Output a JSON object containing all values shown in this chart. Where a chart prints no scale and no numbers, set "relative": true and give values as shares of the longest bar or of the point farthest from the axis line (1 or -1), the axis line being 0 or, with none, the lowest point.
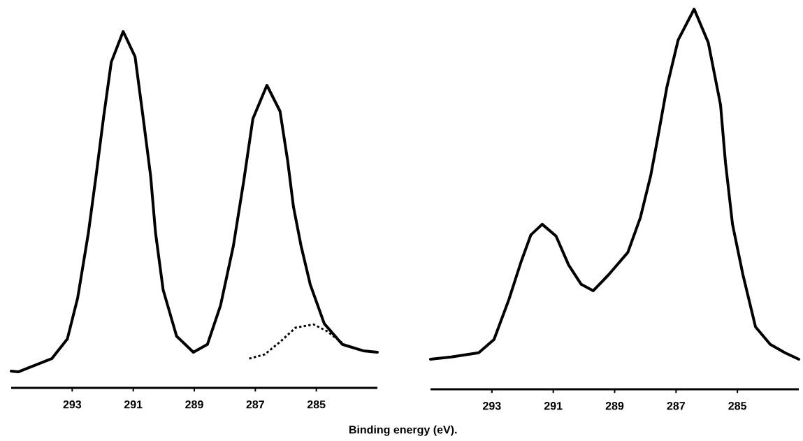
{
  "chart_data": [
    {
      "type": "line",
      "relative": true,
      "xlabel": "Binding energy (eV).",
      "xlim": [
        295,
        283
      ],
      "xticks": [
        293,
        291,
        289,
        287,
        285
      ],
      "marker": "none",
      "series": [
        {
          "color": "#000000",
          "line_style": "solid",
          "x": [
            295.0,
            294.77,
            293.67,
            293.16,
            292.82,
            292.47,
            292.22,
            291.97,
            291.72,
            291.33,
            290.94,
            290.68,
            290.43,
            290.27,
            290.02,
            289.58,
            289.03,
            288.57,
            288.14,
            287.72,
            287.38,
            287.08,
            286.62,
            286.19,
            285.94,
            285.75,
            285.5,
            285.2,
            284.74,
            284.15,
            283.46,
            283.0
          ],
          "values": [
            0.047,
            0.045,
            0.082,
            0.137,
            0.253,
            0.435,
            0.594,
            0.761,
            0.914,
            1.0,
            0.929,
            0.761,
            0.594,
            0.435,
            0.275,
            0.145,
            0.1,
            0.122,
            0.231,
            0.398,
            0.58,
            0.755,
            0.849,
            0.776,
            0.637,
            0.508,
            0.398,
            0.29,
            0.18,
            0.122,
            0.104,
            0.1
          ]
        },
        {
          "color": "#000000",
          "line_style": "dotted",
          "x": [
            287.2,
            286.69,
            286.19,
            285.68,
            285.09,
            284.65,
            284.06
          ],
          "values": [
            0.082,
            0.094,
            0.129,
            0.169,
            0.178,
            0.159,
            0.12
          ]
        }
      ]
    },
    {
      "type": "line",
      "relative": true,
      "xlim": [
        295,
        283
      ],
      "xticks": [
        293,
        291,
        289,
        287,
        285
      ],
      "marker": "none",
      "series": [
        {
          "color": "#000000",
          "line_style": "solid",
          "x": [
            295.0,
            294.32,
            293.43,
            292.93,
            292.45,
            292.05,
            291.73,
            291.36,
            290.91,
            290.5,
            290.09,
            289.7,
            289.2,
            288.57,
            288.16,
            287.82,
            287.59,
            287.3,
            286.93,
            286.41,
            285.95,
            285.55,
            285.39,
            285.16,
            284.82,
            284.41,
            283.93,
            283.45,
            283.0
          ],
          "values": [
            0.079,
            0.085,
            0.096,
            0.131,
            0.235,
            0.335,
            0.406,
            0.434,
            0.403,
            0.327,
            0.276,
            0.259,
            0.301,
            0.36,
            0.452,
            0.564,
            0.664,
            0.794,
            0.919,
            1.0,
            0.912,
            0.748,
            0.597,
            0.434,
            0.301,
            0.164,
            0.118,
            0.096,
            0.079
          ]
        }
      ]
    }
  ]
}
